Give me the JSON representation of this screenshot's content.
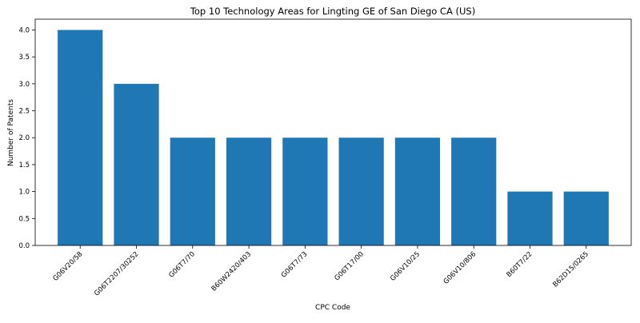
{
  "chart_data": {
    "type": "bar",
    "title": "Top 10 Technology Areas for Lingting GE of San Diego CA (US)",
    "xlabel": "CPC Code",
    "ylabel": "Number of Patents",
    "categories": [
      "G06V20/58",
      "G06T2207/30252",
      "G06T7/70",
      "B60W2420/403",
      "G06T7/73",
      "G06T17/00",
      "G06V10/25",
      "G06V10/806",
      "B60T7/22",
      "B62D15/0265"
    ],
    "values": [
      4,
      3,
      2,
      2,
      2,
      2,
      2,
      2,
      1,
      1
    ],
    "ylim": [
      0,
      4.2
    ],
    "yticks": [
      "0.0",
      "0.5",
      "1.0",
      "1.5",
      "2.0",
      "2.5",
      "3.0",
      "3.5",
      "4.0"
    ],
    "bar_color": "#1f77b4",
    "grid": false,
    "legend": "none"
  }
}
